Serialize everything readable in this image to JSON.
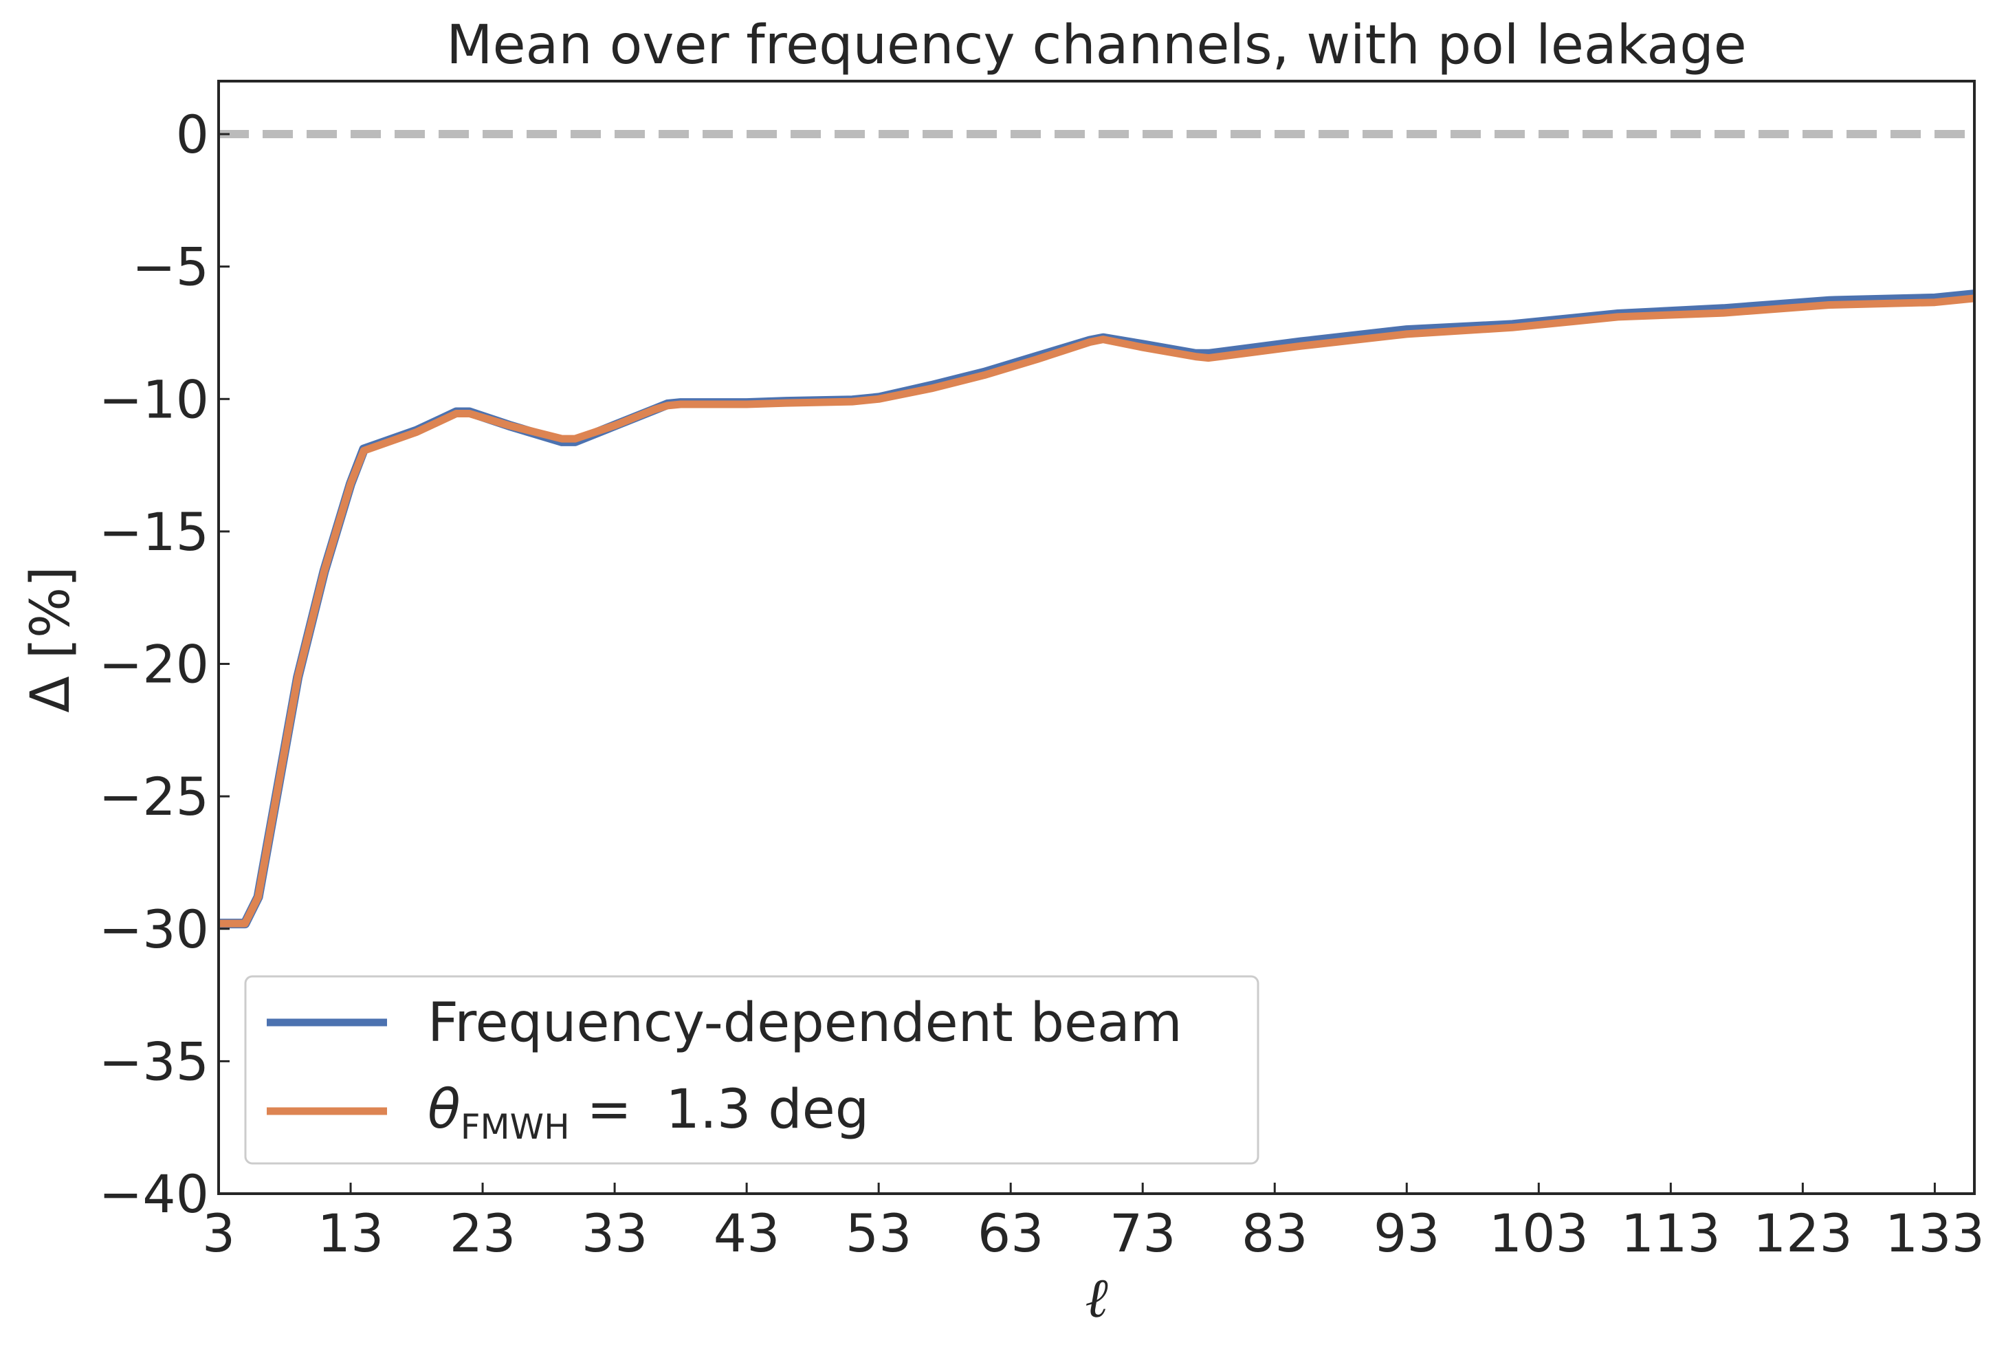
{
  "chart_data": {
    "type": "line",
    "title": "Mean over frequency channels, with pol leakage",
    "xlabel": "ℓ",
    "ylabel": "Δ [%]",
    "xlim": [
      3,
      136
    ],
    "ylim": [
      -40,
      2
    ],
    "xticks": [
      3,
      13,
      23,
      33,
      43,
      53,
      63,
      73,
      83,
      93,
      103,
      113,
      123,
      133
    ],
    "xtick_labels": [
      "3",
      "13",
      "23",
      "33",
      "43",
      "53",
      "63",
      "73",
      "83",
      "93",
      "103",
      "113",
      "123",
      "133"
    ],
    "yticks": [
      0,
      -5,
      -10,
      -15,
      -20,
      -25,
      -30,
      -35,
      -40
    ],
    "ytick_labels": [
      "0",
      "−5",
      "−10",
      "−15",
      "−20",
      "−25",
      "−30",
      "−35",
      "−40"
    ],
    "reference_line": {
      "y": 0,
      "style": "dashed",
      "color": "#bbbbbb"
    },
    "grid": false,
    "legend_position": "lower-left",
    "series": [
      {
        "name": "Frequency-dependent beam",
        "color": "#4c72b0",
        "x": [
          3,
          5,
          6,
          9,
          11,
          13,
          14,
          18,
          21,
          22,
          25,
          29,
          30,
          33,
          36,
          37,
          38,
          43,
          46,
          51,
          53,
          57,
          61,
          65,
          69,
          70,
          73,
          77,
          78,
          85,
          93,
          101,
          109,
          117,
          125,
          133,
          136
        ],
        "y": [
          -29.8,
          -29.8,
          -28.8,
          -20.5,
          -16.5,
          -13.2,
          -11.9,
          -11.2,
          -10.5,
          -10.5,
          -11.0,
          -11.6,
          -11.6,
          -11.0,
          -10.4,
          -10.2,
          -10.15,
          -10.15,
          -10.1,
          -10.05,
          -9.95,
          -9.5,
          -9.0,
          -8.4,
          -7.8,
          -7.7,
          -7.95,
          -8.3,
          -8.3,
          -7.85,
          -7.4,
          -7.2,
          -6.8,
          -6.6,
          -6.3,
          -6.2,
          -6.05
        ]
      },
      {
        "name": "θFMWH = 1.3 deg",
        "color": "#dd8452",
        "x": [
          3,
          5,
          6,
          9,
          11,
          13,
          14,
          18,
          21,
          22,
          25,
          29,
          30,
          33,
          36,
          37,
          38,
          43,
          46,
          51,
          53,
          57,
          61,
          65,
          69,
          70,
          73,
          77,
          78,
          85,
          93,
          101,
          109,
          117,
          125,
          133,
          136
        ],
        "y": [
          -29.8,
          -29.8,
          -28.8,
          -20.5,
          -16.5,
          -13.2,
          -11.95,
          -11.25,
          -10.55,
          -10.55,
          -11.0,
          -11.5,
          -11.5,
          -11.0,
          -10.4,
          -10.25,
          -10.2,
          -10.2,
          -10.15,
          -10.1,
          -10.0,
          -9.6,
          -9.1,
          -8.5,
          -7.85,
          -7.75,
          -8.05,
          -8.4,
          -8.45,
          -8.0,
          -7.55,
          -7.3,
          -6.9,
          -6.75,
          -6.45,
          -6.35,
          -6.2
        ]
      }
    ]
  },
  "legend": {
    "items": [
      {
        "label": "Frequency-dependent beam"
      },
      {
        "label_main": "θ",
        "label_sub": "FMWH",
        "label_rest": " =  1.3 deg"
      }
    ]
  }
}
